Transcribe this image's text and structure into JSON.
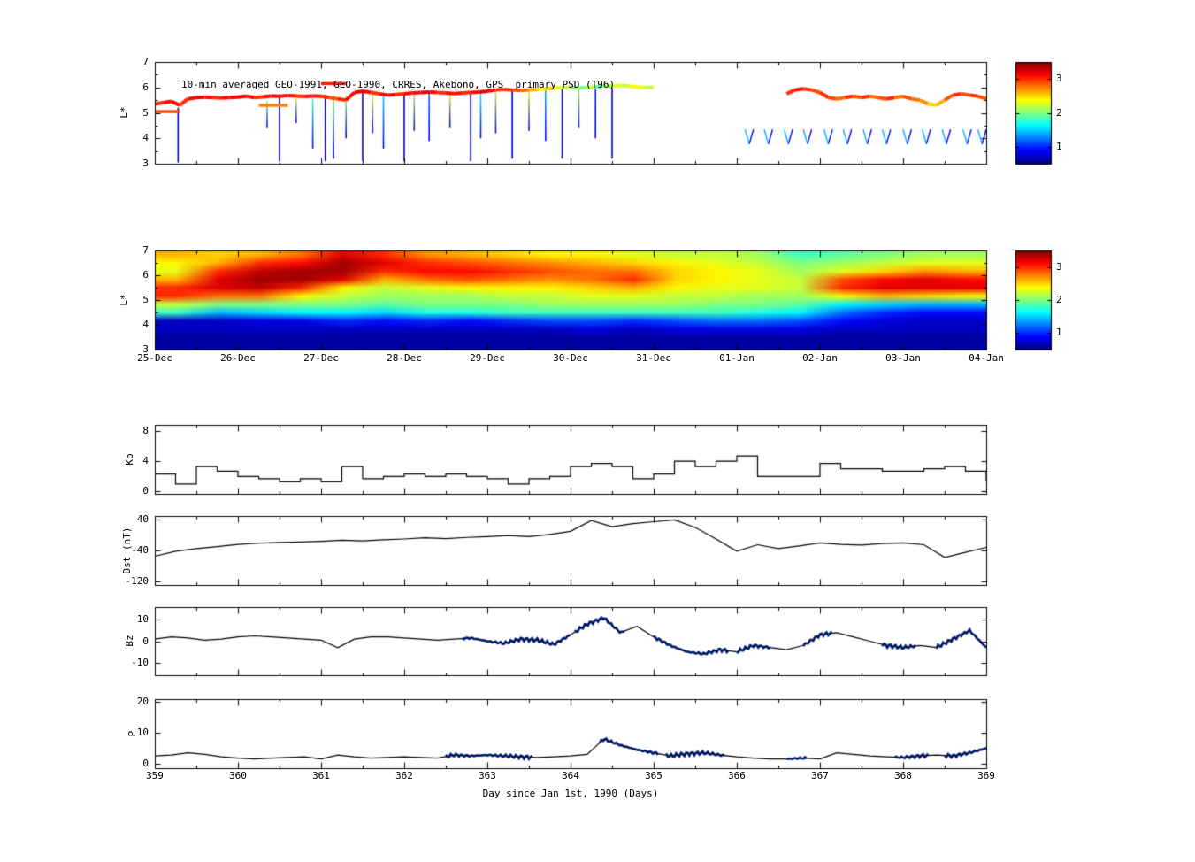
{
  "figure": {
    "background": "#ffffff",
    "xlabel": "Day since Jan 1st, 1990 (Days)"
  },
  "colorbar": {
    "vmin": 0.5,
    "vmax": 3.5,
    "tick_values": [
      1,
      2,
      3
    ]
  },
  "chart_data": [
    {
      "type": "scatter",
      "name": "psd-scatter",
      "title": "10-min averaged GEO-1991, GEO-1990, CRRES, Akebono, GPS  primary PSD (T96)",
      "ylabel": "L*",
      "ylim": [
        3,
        7
      ],
      "xlim": [
        359,
        369
      ],
      "yticks": [
        3,
        4,
        5,
        6,
        7
      ],
      "band1": {
        "x0": 359.0,
        "dx": 0.1,
        "L": [
          5.35,
          5.4,
          5.45,
          5.3,
          5.55,
          5.6,
          5.62,
          5.6,
          5.58,
          5.6,
          5.62,
          5.65,
          5.6,
          5.63,
          5.66,
          5.65,
          5.68,
          5.66,
          5.64,
          5.66,
          5.65,
          5.6,
          5.55,
          5.5,
          5.8,
          5.85,
          5.8,
          5.75,
          5.7,
          5.72,
          5.75,
          5.78,
          5.8,
          5.82,
          5.8,
          5.78,
          5.76,
          5.78,
          5.8,
          5.82,
          5.85,
          5.9,
          5.92,
          5.9,
          5.88,
          5.9,
          5.92,
          5.95,
          5.97,
          6.0,
          6.0,
          5.98,
          6.0,
          6.02,
          6.05,
          6.05,
          6.08,
          6.05,
          6.02,
          6.0,
          6.0
        ],
        "v": [
          3.0,
          3.1,
          3.1,
          3.0,
          3.1,
          3.2,
          3.1,
          3.0,
          3.1,
          3.1,
          3.2,
          3.1,
          3.0,
          3.1,
          3.2,
          3.1,
          3.1,
          3.0,
          3.1,
          3.1,
          3.0,
          2.9,
          3.0,
          3.1,
          3.2,
          3.1,
          3.0,
          3.1,
          3.1,
          3.0,
          3.1,
          3.1,
          3.2,
          3.1,
          3.0,
          3.1,
          3.1,
          3.0,
          3.1,
          3.2,
          3.1,
          3.0,
          3.0,
          2.9,
          2.8,
          2.6,
          2.4,
          2.5,
          2.3,
          2.2,
          2.1,
          2.0,
          2.2,
          1.9,
          2.1,
          2.3,
          2.2,
          2.4,
          2.3,
          2.2,
          2.1
        ]
      },
      "band2": {
        "x0": 366.6,
        "dx": 0.1,
        "L": [
          5.75,
          5.9,
          5.95,
          5.9,
          5.8,
          5.6,
          5.55,
          5.6,
          5.65,
          5.6,
          5.65,
          5.6,
          5.55,
          5.6,
          5.65,
          5.55,
          5.5,
          5.35,
          5.3,
          5.5,
          5.7,
          5.75,
          5.7,
          5.65,
          5.55
        ],
        "v": [
          3.0,
          3.1,
          3.0,
          2.9,
          3.0,
          2.9,
          2.8,
          3.0,
          2.9,
          3.0,
          2.8,
          2.9,
          3.0,
          2.8,
          2.9,
          2.8,
          2.7,
          2.5,
          2.6,
          2.9,
          3.0,
          2.9,
          3.0,
          2.9,
          2.8
        ]
      },
      "extra_segments": [
        {
          "x0": 359.0,
          "x1": 359.3,
          "L": 5.05,
          "v": 2.9
        },
        {
          "x0": 360.25,
          "x1": 360.6,
          "L": 5.3,
          "v": 2.75
        },
        {
          "x0": 361.0,
          "x1": 361.3,
          "L": 6.15,
          "v": 3.05
        }
      ],
      "spikes": [
        [
          359.28,
          5.2,
          3.05,
          0.7
        ],
        [
          360.35,
          5.5,
          4.4,
          2.0
        ],
        [
          360.5,
          5.6,
          3.1,
          0.6
        ],
        [
          360.7,
          5.6,
          4.6,
          2.2
        ],
        [
          360.9,
          5.6,
          3.6,
          1.8
        ],
        [
          361.05,
          5.7,
          3.1,
          0.6
        ],
        [
          361.15,
          5.7,
          3.2,
          2.0
        ],
        [
          361.3,
          5.7,
          4.0,
          2.1
        ],
        [
          361.5,
          5.8,
          3.1,
          0.6
        ],
        [
          361.62,
          5.8,
          4.2,
          2.3
        ],
        [
          361.75,
          5.8,
          3.6,
          1.5
        ],
        [
          362.0,
          5.8,
          3.1,
          0.6
        ],
        [
          362.12,
          5.8,
          4.3,
          2.2
        ],
        [
          362.3,
          5.8,
          3.9,
          1.2
        ],
        [
          362.55,
          5.8,
          4.4,
          2.3
        ],
        [
          362.8,
          5.85,
          3.1,
          0.6
        ],
        [
          362.92,
          5.85,
          4.0,
          1.6
        ],
        [
          363.1,
          5.9,
          4.2,
          2.2
        ],
        [
          363.3,
          5.9,
          3.2,
          0.7
        ],
        [
          363.5,
          5.9,
          4.3,
          2.4
        ],
        [
          363.7,
          5.95,
          3.9,
          1.4
        ],
        [
          363.9,
          6.0,
          3.2,
          0.6
        ],
        [
          364.1,
          6.0,
          4.4,
          2.2
        ],
        [
          364.3,
          6.05,
          4.0,
          1.0
        ],
        [
          364.5,
          6.05,
          3.2,
          0.7
        ]
      ],
      "vmarks": {
        "days": [
          366.15,
          366.38,
          366.62,
          366.85,
          367.1,
          367.33,
          367.57,
          367.8,
          368.05,
          368.28,
          368.52,
          368.77,
          368.95
        ],
        "top": 4.35,
        "bottom": 3.78,
        "halfwidth": 0.05,
        "v_left": 1.4,
        "v_right": 0.85
      }
    },
    {
      "type": "heatmap",
      "name": "psd-heatmap",
      "ylabel": "L*",
      "ylim": [
        3,
        7
      ],
      "xlim": [
        359,
        369
      ],
      "yticks": [
        3,
        4,
        5,
        6,
        7
      ],
      "x_tick_labels": [
        "25-Dec",
        "26-Dec",
        "27-Dec",
        "28-Dec",
        "29-Dec",
        "30-Dec",
        "31-Dec",
        "01-Jan",
        "02-Jan",
        "03-Jan",
        "04-Jan"
      ],
      "vmin": 0.5,
      "vmax": 3.5,
      "rows": 12,
      "cols": 20,
      "values": [
        2.6,
        2.5,
        2.6,
        2.8,
        3.2,
        3.0,
        2.7,
        2.6,
        2.5,
        2.4,
        2.4,
        2.3,
        2.2,
        2.2,
        2.1,
        1.8,
        1.9,
        2.0,
        2.1,
        2.1,
        2.4,
        2.6,
        3.0,
        3.1,
        3.4,
        3.2,
        3.0,
        2.9,
        2.8,
        2.7,
        2.6,
        2.5,
        2.4,
        2.3,
        2.2,
        2.0,
        2.1,
        2.2,
        2.3,
        2.3,
        2.3,
        3.0,
        3.3,
        3.4,
        3.4,
        3.0,
        3.1,
        3.1,
        3.0,
        2.9,
        2.8,
        2.8,
        2.5,
        2.4,
        2.3,
        2.1,
        2.3,
        2.5,
        2.7,
        2.6,
        2.6,
        3.2,
        3.4,
        3.4,
        3.2,
        2.6,
        2.8,
        2.9,
        2.8,
        2.7,
        2.8,
        3.0,
        2.5,
        2.4,
        2.3,
        2.2,
        2.9,
        3.1,
        3.2,
        3.1,
        3.0,
        3.2,
        3.3,
        3.0,
        2.4,
        2.2,
        2.3,
        2.4,
        2.4,
        2.4,
        2.5,
        2.6,
        2.4,
        2.3,
        2.3,
        2.2,
        3.0,
        3.2,
        3.2,
        3.2,
        3.0,
        2.8,
        2.8,
        2.4,
        2.2,
        2.1,
        2.1,
        2.1,
        2.2,
        2.2,
        2.3,
        2.3,
        2.2,
        2.2,
        2.1,
        2.1,
        2.4,
        2.6,
        2.5,
        2.4,
        2.2,
        2.0,
        2.0,
        2.0,
        2.0,
        1.9,
        2.0,
        2.0,
        2.0,
        2.1,
        2.1,
        2.1,
        2.1,
        2.0,
        2.0,
        1.9,
        1.6,
        1.5,
        1.4,
        1.4,
        1.8,
        1.4,
        1.5,
        1.6,
        1.6,
        1.5,
        1.7,
        1.7,
        1.8,
        1.8,
        1.8,
        1.8,
        1.8,
        1.8,
        1.7,
        1.6,
        1.2,
        1.0,
        0.9,
        0.9,
        0.7,
        0.7,
        0.8,
        0.8,
        1.0,
        0.9,
        1.0,
        0.9,
        1.0,
        1.1,
        1.1,
        1.0,
        1.1,
        1.2,
        1.2,
        1.1,
        0.9,
        0.8,
        0.7,
        0.7,
        0.7,
        0.7,
        0.7,
        0.7,
        0.7,
        0.7,
        0.7,
        0.7,
        0.7,
        0.7,
        0.8,
        0.7,
        0.8,
        0.8,
        0.8,
        0.8,
        0.7,
        0.7,
        0.7,
        0.7,
        0.6,
        0.6,
        0.6,
        0.6,
        0.6,
        0.6,
        0.6,
        0.6,
        0.6,
        0.6,
        0.6,
        0.6,
        0.6,
        0.6,
        0.6,
        0.6,
        0.6,
        0.6,
        0.6,
        0.6,
        0.6,
        0.6,
        0.6,
        0.6,
        0.6,
        0.6,
        0.6,
        0.6,
        0.6,
        0.6,
        0.6,
        0.6,
        0.6,
        0.6,
        0.6,
        0.6,
        0.6,
        0.6,
        0.6,
        0.6
      ]
    },
    {
      "type": "line",
      "name": "kp",
      "ylabel": "Kp",
      "yticks": [
        0,
        4,
        8
      ],
      "step": true,
      "x0": 359,
      "dx": 0.25,
      "values": [
        2.3,
        1.0,
        3.3,
        2.7,
        2.0,
        1.7,
        1.3,
        1.7,
        1.3,
        3.3,
        1.7,
        2.0,
        2.3,
        2.0,
        2.3,
        2.0,
        1.7,
        1.0,
        1.7,
        2.0,
        3.3,
        3.7,
        3.3,
        1.7,
        2.3,
        4.0,
        3.3,
        4.0,
        4.7,
        2.0,
        2.0,
        2.0,
        3.7,
        3.0,
        3.0,
        2.7,
        2.7,
        3.0,
        3.3,
        2.7,
        1.3
      ]
    },
    {
      "type": "line",
      "name": "dst",
      "ylabel": "Dst (nT)",
      "yticks": [
        -120,
        -40,
        40
      ],
      "x0": 359,
      "dx": 0.25,
      "values": [
        -55,
        -42,
        -35,
        -30,
        -24,
        -21,
        -19,
        -18,
        -16,
        -13,
        -15,
        -12,
        -10,
        -7,
        -9,
        -6,
        -4,
        -1,
        -4,
        2,
        10,
        38,
        22,
        30,
        35,
        40,
        20,
        -10,
        -42,
        -25,
        -35,
        -28,
        -20,
        -24,
        -26,
        -22,
        -20,
        -25,
        -58,
        -45,
        -32
      ]
    },
    {
      "type": "line",
      "name": "bz",
      "ylabel": "Bz",
      "yticks": [
        -10,
        0,
        10
      ],
      "x0": 359,
      "dx": 0.2,
      "values": [
        1,
        2,
        1.5,
        0.5,
        1,
        2,
        2.5,
        2,
        1.5,
        1,
        0.5,
        -3,
        1,
        2,
        2,
        1.5,
        1,
        0.5,
        1,
        1.5,
        0,
        -1,
        1,
        0.5,
        -1.5,
        3,
        8,
        11,
        4,
        7,
        2,
        -2,
        -5,
        -6,
        -4,
        -5,
        -2,
        -3,
        -4,
        -2,
        3,
        4,
        2,
        0,
        -2,
        -3,
        -2,
        -3,
        1,
        5,
        -3
      ],
      "bold_color": "#001a66",
      "bold_ranges": [
        [
          362.7,
          364.0
        ],
        [
          364.05,
          364.65
        ],
        [
          365.0,
          365.9
        ],
        [
          366.0,
          366.4
        ],
        [
          366.8,
          367.15
        ],
        [
          367.75,
          368.15
        ],
        [
          368.4,
          369.0
        ]
      ]
    },
    {
      "type": "line",
      "name": "p",
      "ylabel": "P",
      "yticks": [
        0,
        10,
        20
      ],
      "x0": 359,
      "dx": 0.2,
      "values": [
        2.5,
        2.8,
        3.5,
        3,
        2.2,
        1.8,
        1.5,
        1.8,
        2,
        2.2,
        1.5,
        2.8,
        2.2,
        1.8,
        2,
        2.2,
        2,
        1.8,
        2.8,
        2.5,
        2.8,
        2.5,
        2.2,
        2,
        2.2,
        2.5,
        3,
        8,
        6,
        4.5,
        3.5,
        2.5,
        3.2,
        3.5,
        2.8,
        2.2,
        1.8,
        1.5,
        1.5,
        1.8,
        1.5,
        3.5,
        3,
        2.5,
        2.2,
        2,
        2.5,
        2.8,
        2.5,
        3.5,
        5
      ],
      "bold_color": "#001a66",
      "bold_ranges": [
        [
          362.5,
          363.55
        ],
        [
          364.35,
          365.05
        ],
        [
          365.15,
          365.85
        ],
        [
          366.6,
          366.85
        ],
        [
          367.9,
          368.3
        ],
        [
          368.5,
          369.0
        ]
      ],
      "xticks": [
        359,
        360,
        361,
        362,
        363,
        364,
        365,
        366,
        367,
        368,
        369
      ],
      "xlabel": "Day since Jan 1st, 1990 (Days)"
    }
  ]
}
